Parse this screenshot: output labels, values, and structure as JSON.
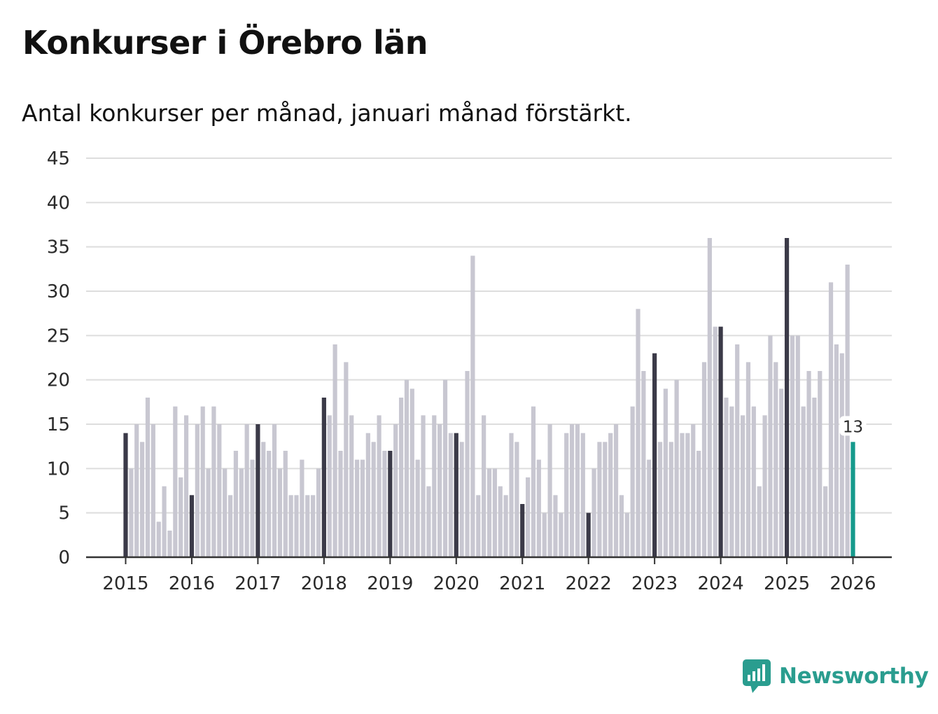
{
  "header": {
    "title": "Konkurser i Örebro län",
    "subtitle": "Antal konkurser per månad, januari månad förstärkt."
  },
  "brand": {
    "name": "Newsworthy",
    "icon": "newsworthy-logo-icon"
  },
  "colors": {
    "bar": "#c8c7d1",
    "january_bar": "#3b3a48",
    "latest_bar": "#159a8c",
    "grid": "#dddddd",
    "axis": "#333333",
    "brand": "#2a9d8f"
  },
  "chart_data": {
    "type": "bar",
    "title": "Konkurser i Örebro län",
    "subtitle": "Antal konkurser per månad, januari månad förstärkt.",
    "xlabel": "",
    "ylabel": "",
    "ylim": [
      0,
      45
    ],
    "yticks": [
      0,
      5,
      10,
      15,
      20,
      25,
      30,
      35,
      40,
      45
    ],
    "xticks": [
      "2015",
      "2016",
      "2017",
      "2018",
      "2019",
      "2020",
      "2021",
      "2022",
      "2023",
      "2024",
      "2025",
      "2026"
    ],
    "start": "2015-01",
    "frequency": "monthly",
    "highlight": "january",
    "grid": true,
    "latest_label": "13",
    "values": [
      14,
      10,
      15,
      13,
      18,
      15,
      4,
      8,
      3,
      17,
      9,
      16,
      7,
      15,
      17,
      10,
      17,
      15,
      10,
      7,
      12,
      10,
      15,
      11,
      15,
      13,
      12,
      15,
      10,
      12,
      7,
      7,
      11,
      7,
      7,
      10,
      18,
      16,
      24,
      12,
      22,
      16,
      11,
      11,
      14,
      13,
      16,
      12,
      12,
      15,
      18,
      20,
      19,
      11,
      16,
      8,
      16,
      15,
      20,
      14,
      14,
      13,
      21,
      34,
      7,
      16,
      10,
      10,
      8,
      7,
      14,
      13,
      6,
      9,
      17,
      11,
      5,
      15,
      7,
      5,
      14,
      15,
      15,
      14,
      5,
      10,
      13,
      13,
      14,
      15,
      7,
      5,
      17,
      28,
      21,
      11,
      23,
      13,
      19,
      13,
      20,
      14,
      14,
      15,
      12,
      22,
      36,
      26,
      26,
      18,
      17,
      24,
      16,
      22,
      17,
      8,
      16,
      25,
      22,
      19,
      36,
      25,
      25,
      17,
      21,
      18,
      21,
      8,
      31,
      24,
      23,
      33,
      13
    ]
  }
}
